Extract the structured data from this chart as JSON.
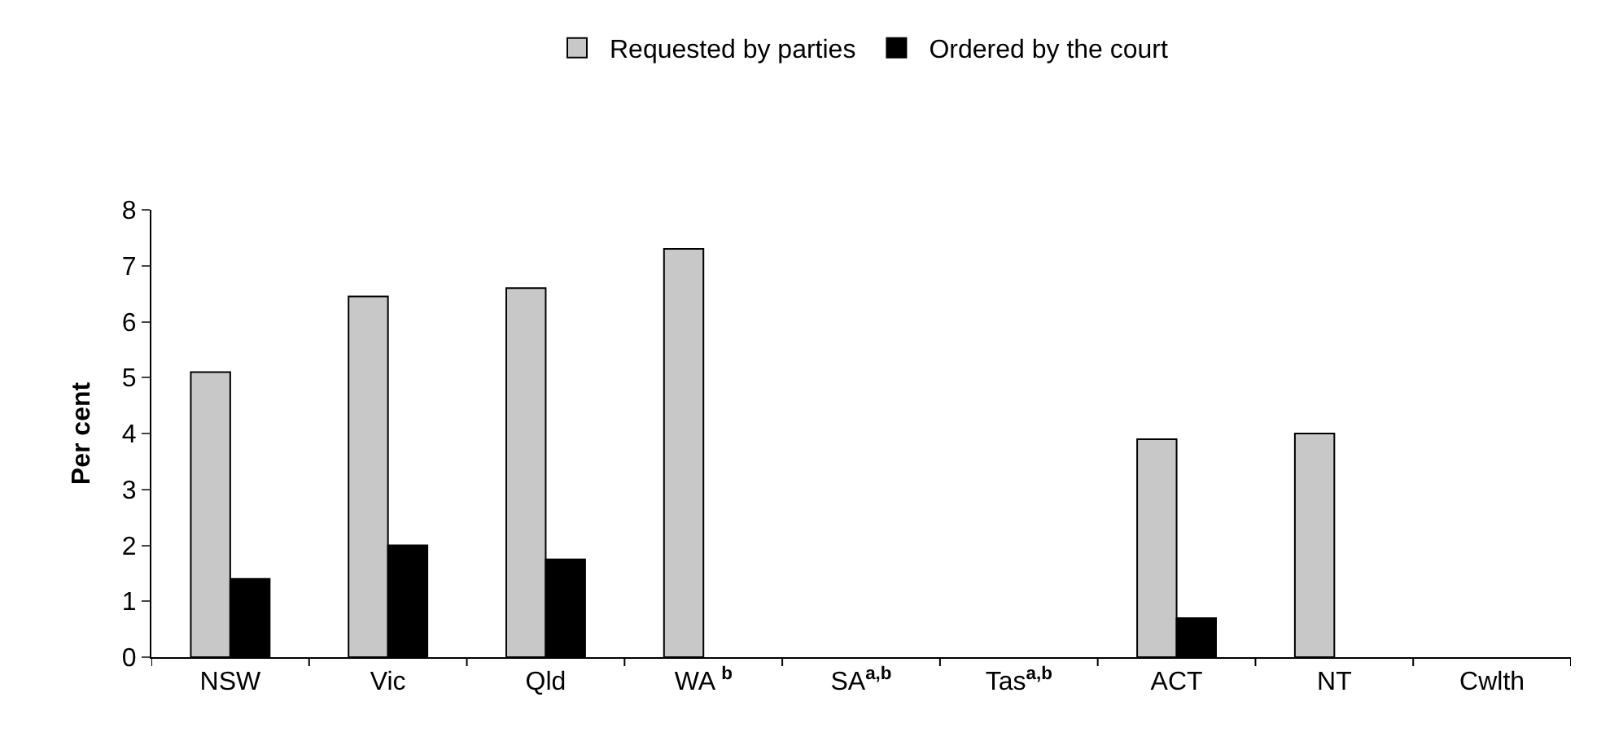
{
  "chart_data": {
    "type": "bar",
    "ylabel": "Per cent",
    "categories": [
      "NSW",
      "Vic",
      "Qld",
      "WA $^{b}$",
      "SA$^{a,b}$",
      "Tas$^{a,b}$",
      "ACT",
      "NT",
      "Cwlth"
    ],
    "series": [
      {
        "name": "Requested by parties",
        "color": "#c8c8c8",
        "values": [
          5.1,
          6.45,
          6.6,
          7.3,
          null,
          null,
          3.9,
          4.0,
          null
        ]
      },
      {
        "name": "Ordered by the court",
        "color": "#000000",
        "values": [
          1.4,
          2.0,
          1.75,
          null,
          null,
          null,
          0.7,
          null,
          null
        ]
      }
    ],
    "ylim": [
      0,
      8
    ],
    "yticks": [
      0,
      1,
      2,
      3,
      4,
      5,
      6,
      7,
      8
    ],
    "legend": "top"
  }
}
